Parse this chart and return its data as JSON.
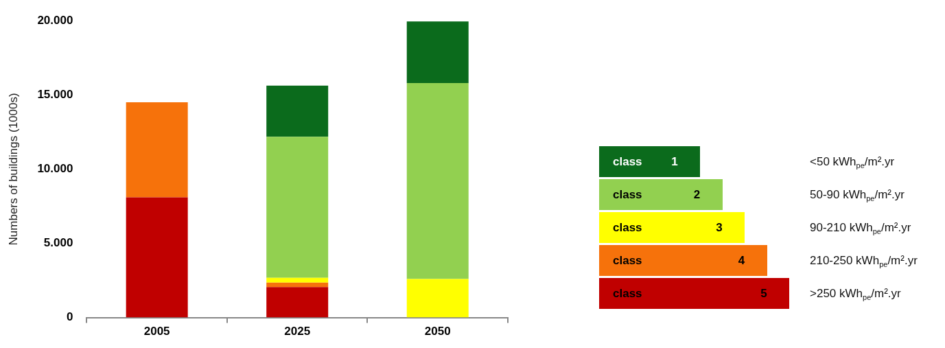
{
  "chart_data": {
    "type": "bar",
    "stacked": true,
    "ylabel": "Numbers of buildings (1000s)",
    "categories": [
      "2005",
      "2025",
      "2050"
    ],
    "ylim": [
      0,
      20000
    ],
    "yticks": [
      {
        "value": 0,
        "label": "0"
      },
      {
        "value": 5000,
        "label": "5.000"
      },
      {
        "value": 10000,
        "label": "10.000"
      },
      {
        "value": 15000,
        "label": "15.000"
      },
      {
        "value": 20000,
        "label": "20.000"
      }
    ],
    "grid": false,
    "legend": "right",
    "series": [
      {
        "name": "class 5",
        "color": "#c00000",
        "values": [
          8100,
          2050,
          null
        ]
      },
      {
        "name": "class 4",
        "color": "#f6720b",
        "values": [
          6400,
          300,
          null
        ]
      },
      {
        "name": "class 3",
        "color": "#ffff00",
        "values": [
          null,
          330,
          2600
        ]
      },
      {
        "name": "class 2",
        "color": "#92d050",
        "values": [
          null,
          9500,
          13200
        ]
      },
      {
        "name": "class 1",
        "color": "#0b6b1c",
        "values": [
          null,
          3450,
          4150
        ]
      }
    ],
    "annotations": [
      ">250 kWh$_{pe}$/m².yr",
      "210-250 kWh$_{pe}$/m².yr",
      "90-210 kWh$_{pe}$/m².yr",
      "50-90 kWh$_{pe}$/m².yr",
      "<50 kWh$_{pe}$/m².yr"
    ]
  }
}
